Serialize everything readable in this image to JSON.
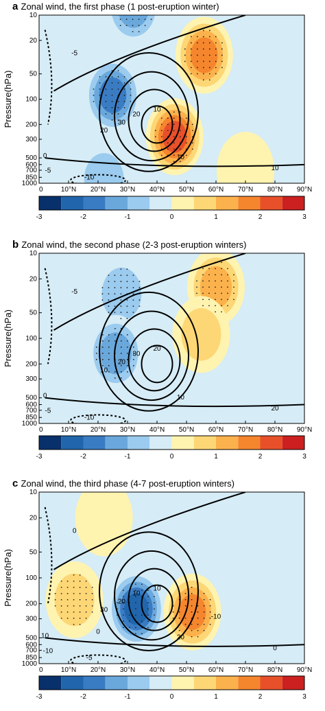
{
  "chart_data": [
    {
      "type": "heatmap",
      "panel": "a",
      "title": "Zonal wind, the first phase (1 post-eruption winter)",
      "ylabel": "Pressure(hPa)",
      "x_ticks": [
        "0",
        "10°N",
        "20°N",
        "30°N",
        "40°N",
        "50°N",
        "60°N",
        "70°N",
        "80°N",
        "90°N"
      ],
      "y_ticks": [
        "10",
        "20",
        "50",
        "100",
        "200",
        "300",
        "500",
        "600",
        "700",
        "850",
        "1000"
      ],
      "colorbar_ticks": [
        "-3",
        "-2",
        "-1",
        "0",
        "1",
        "2",
        "3"
      ],
      "colorbar_range": [
        -3,
        3
      ],
      "colors": [
        "#08306b",
        "#2166ac",
        "#3a7cc4",
        "#6aa8dc",
        "#9bcbee",
        "#d6ecf6",
        "#fff3b0",
        "#fdd776",
        "#fcb24c",
        "#f5862e",
        "#e8502a",
        "#cc2020"
      ],
      "contour_labels": [
        "-5",
        "10",
        "20",
        "30",
        "20",
        "10",
        "0",
        "-5",
        "-10",
        "10"
      ],
      "anomaly_centers": [
        {
          "lat": 32,
          "p": 8,
          "value": -1.5
        },
        {
          "lat": 25,
          "p": 90,
          "value": -1.8
        },
        {
          "lat": 46,
          "p": 280,
          "value": 2.2
        },
        {
          "lat": 56,
          "p": 30,
          "value": 1.8
        },
        {
          "lat": 22,
          "p": 900,
          "value": -0.7
        },
        {
          "lat": 70,
          "p": 700,
          "value": 0.5
        }
      ]
    },
    {
      "type": "heatmap",
      "panel": "b",
      "title": "Zonal wind, the second phase (2-3 post-eruption winters)",
      "ylabel": "Pressure(hPa)",
      "x_ticks": [
        "0",
        "10°N",
        "20°N",
        "30°N",
        "40°N",
        "50°N",
        "60°N",
        "70°N",
        "80°N",
        "90°N"
      ],
      "y_ticks": [
        "10",
        "20",
        "50",
        "100",
        "200",
        "300",
        "500",
        "600",
        "700",
        "850",
        "1000"
      ],
      "colorbar_ticks": [
        "-3",
        "-2",
        "-1",
        "0",
        "1",
        "2",
        "3"
      ],
      "colorbar_range": [
        -3,
        3
      ],
      "contour_labels": [
        "-5",
        "20",
        "30",
        "20",
        "10",
        "10",
        "0",
        "-5",
        "-10",
        "20"
      ],
      "anomaly_centers": [
        {
          "lat": 28,
          "p": 30,
          "value": -0.9
        },
        {
          "lat": 26,
          "p": 150,
          "value": -1.1
        },
        {
          "lat": 60,
          "p": 25,
          "value": 1.2
        },
        {
          "lat": 55,
          "p": 90,
          "value": 0.7
        }
      ]
    },
    {
      "type": "heatmap",
      "panel": "c",
      "title": "Zonal wind, the third phase (4-7 post-eruption winters)",
      "ylabel": "Pressure(hPa)",
      "x_ticks": [
        "0",
        "10°N",
        "20°N",
        "30°N",
        "40°N",
        "50°N",
        "60°N",
        "70°N",
        "80°N",
        "90°N"
      ],
      "y_ticks": [
        "10",
        "20",
        "50",
        "100",
        "200",
        "300",
        "500",
        "600",
        "700",
        "850",
        "1000"
      ],
      "colorbar_ticks": [
        "-3",
        "-2",
        "-1",
        "0",
        "1",
        "2",
        "3"
      ],
      "colorbar_range": [
        -3,
        3
      ],
      "contour_labels": [
        "0",
        "10",
        "10",
        "20",
        "30",
        "20",
        "10",
        "-10",
        "-5",
        "0",
        "-10",
        "0"
      ],
      "anomaly_centers": [
        {
          "lat": 33,
          "p": 230,
          "value": -2.4
        },
        {
          "lat": 52,
          "p": 250,
          "value": 1.6
        },
        {
          "lat": 12,
          "p": 180,
          "value": 0.8
        },
        {
          "lat": 22,
          "p": 20,
          "value": 0.4
        },
        {
          "lat": 60,
          "p": 20,
          "value": -0.3
        }
      ]
    }
  ]
}
